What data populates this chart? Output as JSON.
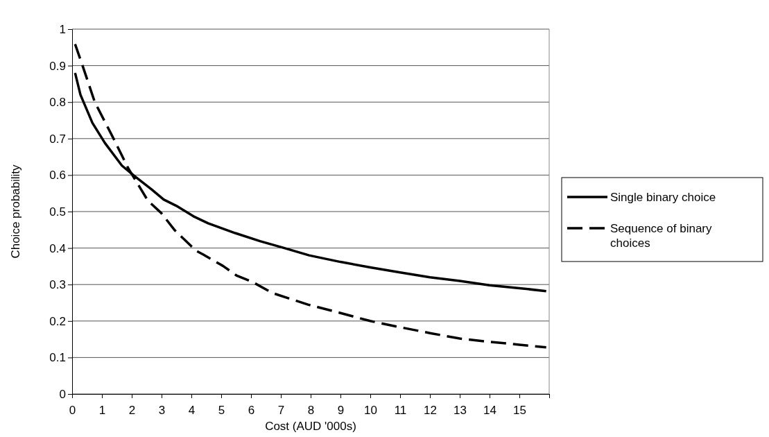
{
  "chart_data": {
    "type": "line",
    "xlabel": "Cost (AUD '000s)",
    "ylabel": "Choice probability",
    "xlim": [
      0,
      16
    ],
    "xticks": [
      0,
      1,
      2,
      3,
      4,
      5,
      6,
      7,
      8,
      9,
      10,
      11,
      12,
      13,
      14,
      15,
      {
        "value": 16,
        "label": null
      }
    ],
    "ylim": [
      0,
      1
    ],
    "yticks": [
      0,
      0.1,
      0.2,
      0.3,
      0.4,
      0.5,
      0.6,
      0.7,
      0.8,
      0.9,
      1
    ],
    "grid": "y",
    "legend": "right",
    "marker": "none",
    "series": [
      {
        "name": "Single binary choice",
        "color": "#000000",
        "line_style": "solid",
        "x": [
          0.1,
          0.28,
          0.68,
          1.1,
          1.67,
          2.08,
          2.66,
          3.07,
          3.49,
          4.07,
          4.56,
          5.47,
          6.3,
          7.12,
          7.95,
          9,
          10,
          11,
          12,
          13,
          14,
          15,
          15.9
        ],
        "values": [
          0.88,
          0.82,
          0.743,
          0.688,
          0.626,
          0.598,
          0.561,
          0.533,
          0.516,
          0.487,
          0.468,
          0.441,
          0.419,
          0.4,
          0.38,
          0.362,
          0.347,
          0.333,
          0.32,
          0.31,
          0.298,
          0.29,
          0.282
        ]
      },
      {
        "name": "Sequence of binary choices",
        "color": "#000000",
        "line_style": "dashed",
        "x": [
          0.1,
          0.35,
          0.76,
          1.34,
          1.88,
          2.54,
          2.99,
          3.45,
          4.15,
          4.4,
          5.06,
          5.51,
          6.05,
          6.71,
          7.91,
          9,
          10,
          11,
          12,
          13,
          14,
          15,
          15.9
        ],
        "values": [
          0.959,
          0.9,
          0.8,
          0.708,
          0.619,
          0.53,
          0.496,
          0.448,
          0.393,
          0.382,
          0.351,
          0.325,
          0.307,
          0.277,
          0.245,
          0.222,
          0.2,
          0.183,
          0.167,
          0.152,
          0.143,
          0.135,
          0.128
        ]
      }
    ]
  }
}
